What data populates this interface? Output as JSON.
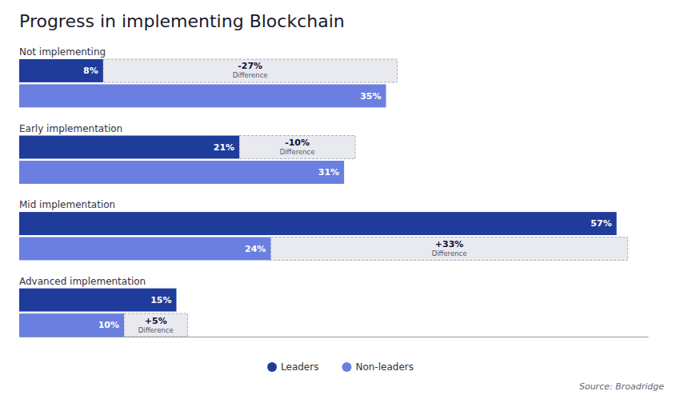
{
  "chart_data": {
    "type": "bar",
    "orientation": "horizontal",
    "title": "Progress in implementing Blockchain",
    "source": "Source: Broadridge",
    "categories": [
      "Not implementing",
      "Early implementation",
      "Mid implementation",
      "Advanced implementation"
    ],
    "series": [
      {
        "name": "Leaders",
        "color": "#1f3c9b",
        "values": [
          8,
          21,
          57,
          15
        ],
        "value_labels": [
          "8%",
          "21%",
          "57%",
          "15%"
        ]
      },
      {
        "name": "Non-leaders",
        "color": "#6a7fe0",
        "values": [
          35,
          31,
          24,
          10
        ],
        "value_labels": [
          "35%",
          "31%",
          "24%",
          "10%"
        ]
      }
    ],
    "differences": {
      "name": "Difference",
      "values": [
        -27,
        -10,
        33,
        5
      ],
      "value_labels": [
        "-27%",
        "-10%",
        "+33%",
        "+5%"
      ]
    },
    "xlim": [
      0,
      60
    ],
    "data_labels": true,
    "legend": "bottom",
    "grid": false,
    "tick_labels": false
  }
}
